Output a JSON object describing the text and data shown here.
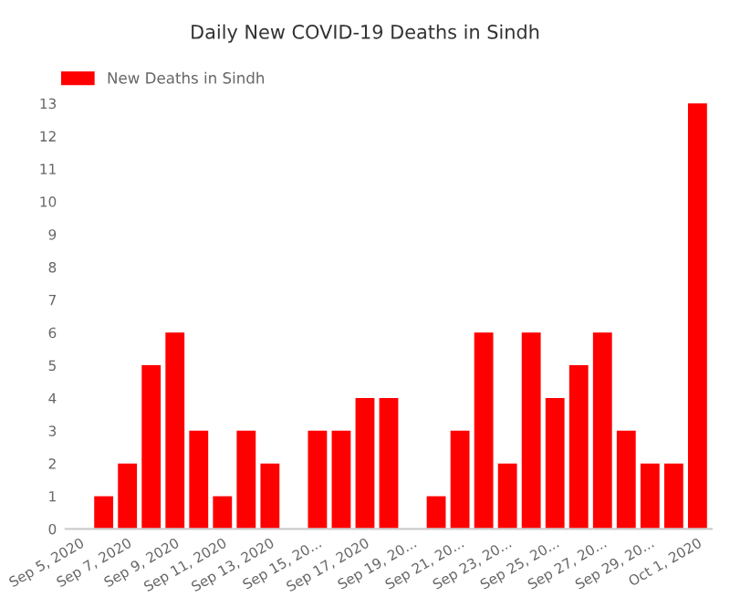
{
  "chart_data": {
    "type": "bar",
    "title": "Daily New COVID-19 Deaths in Sindh",
    "categories": [
      "Sep 5, 2020",
      null,
      "Sep 7, 2020",
      null,
      "Sep 9, 2020",
      null,
      "Sep 11, 2020",
      null,
      "Sep 13, 2020",
      null,
      "Sep 15, 20...",
      null,
      "Sep 17, 2020",
      null,
      "Sep 19, 20...",
      null,
      "Sep 21, 20...",
      null,
      "Sep 23, 20...",
      null,
      "Sep 25, 20...",
      null,
      "Sep 27, 20...",
      null,
      "Sep 29, 20...",
      null,
      "Oct 1, 2020"
    ],
    "series": [
      {
        "name": "New Deaths in Sindh",
        "color": "#ff0000",
        "values": [
          0,
          1,
          2,
          5,
          6,
          3,
          1,
          3,
          2,
          0,
          3,
          3,
          4,
          4,
          0,
          1,
          3,
          6,
          2,
          6,
          4,
          5,
          6,
          3,
          2,
          2,
          13
        ]
      }
    ],
    "ylim": [
      0,
      13
    ],
    "yticks": [
      0,
      1,
      2,
      3,
      4,
      5,
      6,
      7,
      8,
      9,
      10,
      11,
      12,
      13
    ],
    "grid": false,
    "legend": "top left"
  }
}
